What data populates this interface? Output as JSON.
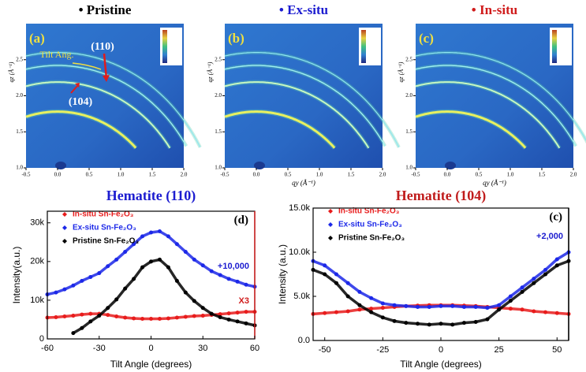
{
  "chart_data": [
    {
      "type": "heatmap",
      "title": "• Pristine",
      "title_color": "#000000",
      "label": "(a)",
      "annotations": [
        "(110)",
        "Tilt Ang.",
        "(104)"
      ],
      "ylabel": "qz (Å⁻¹)",
      "xlim": [
        -0.5,
        2.0
      ],
      "ylim": [
        1.0,
        3.0
      ],
      "xticks": [
        -0.5,
        {
          "value": 0,
          "label": "0.0"
        },
        0.5,
        {
          "value": 1,
          "label": "1.0"
        },
        1.5,
        {
          "value": 2,
          "label": "2.0"
        }
      ],
      "yticks": [
        {
          "value": 1,
          "label": "1.0"
        },
        1.5,
        {
          "value": 2,
          "label": "2.0"
        },
        2.5
      ]
    },
    {
      "type": "heatmap",
      "title": "• Ex-situ",
      "title_color": "#1c1cd0",
      "label": "(b)",
      "xlabel": "qy (Å⁻¹)",
      "ylabel": "qz (Å⁻¹)",
      "xlim": [
        -0.5,
        2.0
      ],
      "ylim": [
        1.0,
        3.0
      ],
      "xticks": [
        -0.5,
        {
          "value": 0,
          "label": "0.0"
        },
        0.5,
        {
          "value": 1,
          "label": "1.0"
        },
        1.5,
        {
          "value": 2,
          "label": "2.0"
        }
      ],
      "yticks": [
        {
          "value": 1,
          "label": "1.0"
        },
        1.5,
        {
          "value": 2,
          "label": "2.0"
        },
        2.5
      ]
    },
    {
      "type": "heatmap",
      "title": "• In-situ",
      "title_color": "#d01c1c",
      "label": "(c)",
      "xlabel": "qy (Å⁻¹)",
      "ylabel": "qz (Å⁻¹)",
      "xlim": [
        -0.5,
        2.0
      ],
      "ylim": [
        1.0,
        3.0
      ],
      "xticks": [
        -0.5,
        {
          "value": 0,
          "label": "0.0"
        },
        0.5,
        {
          "value": 1,
          "label": "1.0"
        },
        1.5,
        {
          "value": 2,
          "label": "2.0"
        }
      ],
      "yticks": [
        {
          "value": 1,
          "label": "1.0"
        },
        1.5,
        {
          "value": 2,
          "label": "2.0"
        },
        2.5
      ]
    },
    {
      "type": "scatter",
      "title": "Hematite (110)",
      "title_color": "#1c1cd0",
      "label": "(d)",
      "xlabel": "Tilt Angle (degrees)",
      "ylabel": "Intensity(a.u.)",
      "axis_color": "#d01c1c",
      "annotations": [
        {
          "text": "+10,000",
          "color": "#1c1cd0"
        },
        {
          "text": "X3",
          "color": "#d01c1c"
        }
      ],
      "legend": "top-left",
      "xlim": [
        -60,
        60
      ],
      "ylim": [
        0,
        33000
      ],
      "xticks": [
        -60,
        -30,
        0,
        30,
        60
      ],
      "yticks": [
        0,
        {
          "value": 10000,
          "label": "10k"
        },
        {
          "value": 20000,
          "label": "20k"
        },
        {
          "value": 30000,
          "label": "30k"
        }
      ],
      "x": [
        -60,
        -55,
        -50,
        -45,
        -40,
        -35,
        -30,
        -25,
        -20,
        -15,
        -10,
        -5,
        0,
        5,
        10,
        15,
        20,
        25,
        30,
        35,
        40,
        45,
        50,
        55,
        60
      ],
      "series": [
        {
          "name": "In-situ Sn-Fe₂O₃",
          "color": "#e81c1c",
          "values": [
            5500,
            5600,
            5800,
            6000,
            6300,
            6500,
            6500,
            6200,
            5800,
            5500,
            5300,
            5200,
            5200,
            5200,
            5300,
            5500,
            5700,
            5900,
            6000,
            6200,
            6400,
            6600,
            6800,
            7000,
            7000
          ]
        },
        {
          "name": "Ex-situ Sn-Fe₂O₃",
          "color": "#1c28e8",
          "values": [
            11500,
            12000,
            12800,
            13800,
            15000,
            16000,
            17000,
            18800,
            20500,
            22500,
            24500,
            26500,
            27500,
            27800,
            26500,
            24500,
            22500,
            20500,
            19000,
            17500,
            16500,
            15500,
            14800,
            14000,
            13500
          ]
        },
        {
          "name": "Pristine Sn-Fe₂O₃",
          "color": "#000000",
          "values": [
            null,
            null,
            null,
            1500,
            2800,
            4500,
            6000,
            8000,
            10200,
            13000,
            15500,
            18500,
            20000,
            20500,
            18500,
            15000,
            12000,
            9800,
            8000,
            6500,
            5600,
            5000,
            4500,
            4000,
            3500
          ]
        }
      ]
    },
    {
      "type": "scatter",
      "title": "Hematite (104)",
      "title_color": "#c01c1c",
      "label": "(c)",
      "xlabel": "Tilt Angle (degrees)",
      "ylabel": "Intensity (a.u.)",
      "axis_color": "#000000",
      "annotations": [
        {
          "text": "+2,000",
          "color": "#1c1cd0"
        }
      ],
      "legend": "top-left",
      "xlim": [
        -55,
        55
      ],
      "ylim": [
        0,
        15000
      ],
      "xticks": [
        -50,
        -25,
        0,
        25,
        50
      ],
      "yticks": [
        {
          "value": 0,
          "label": "0.0"
        },
        {
          "value": 5000,
          "label": "5.0k"
        },
        {
          "value": 10000,
          "label": "10.0k"
        },
        {
          "value": 15000,
          "label": "15.0k"
        }
      ],
      "x": [
        -55,
        -50,
        -45,
        -40,
        -35,
        -30,
        -25,
        -20,
        -15,
        -10,
        -5,
        0,
        5,
        10,
        15,
        20,
        25,
        30,
        35,
        40,
        45,
        50,
        55
      ],
      "series": [
        {
          "name": "In-situ Sn-Fe₂O₃",
          "color": "#e81c1c",
          "values": [
            3000,
            3100,
            3200,
            3300,
            3500,
            3600,
            3700,
            3800,
            3900,
            3950,
            4000,
            4000,
            4000,
            3950,
            3900,
            3800,
            3700,
            3600,
            3500,
            3300,
            3200,
            3100,
            3000
          ]
        },
        {
          "name": "Ex-situ Sn-Fe₂O₃",
          "color": "#1c28e8",
          "values": [
            9000,
            8500,
            7500,
            6500,
            5500,
            4800,
            4200,
            4000,
            3900,
            3800,
            3800,
            3900,
            3900,
            3800,
            3800,
            3700,
            4000,
            5000,
            6000,
            7000,
            8000,
            9200,
            10000
          ]
        },
        {
          "name": "Pristine Sn-Fe₂O₃",
          "color": "#000000",
          "values": [
            8000,
            7500,
            6500,
            5000,
            4000,
            3200,
            2600,
            2200,
            2000,
            1900,
            1800,
            1900,
            1800,
            2000,
            2100,
            2400,
            3500,
            4500,
            5500,
            6500,
            7500,
            8500,
            9000
          ]
        }
      ]
    }
  ]
}
